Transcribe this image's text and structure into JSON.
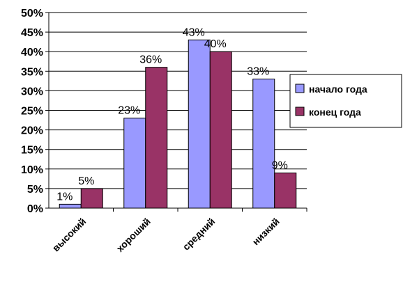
{
  "chart_data": {
    "type": "bar",
    "categories": [
      "высокий",
      "хороший",
      "средний",
      "низкий"
    ],
    "series": [
      {
        "name": "начало года",
        "values": [
          1,
          23,
          43,
          33
        ],
        "labels": [
          "1%",
          "23%",
          "43%",
          "33%"
        ],
        "color": "#9999FF"
      },
      {
        "name": "конец года",
        "values": [
          5,
          36,
          40,
          9
        ],
        "labels": [
          "5%",
          "36%",
          "40%",
          "9%"
        ],
        "color": "#993366"
      }
    ],
    "y_ticks": [
      "0%",
      "5%",
      "10%",
      "15%",
      "20%",
      "25%",
      "30%",
      "35%",
      "40%",
      "45%",
      "50%"
    ],
    "ylim": [
      0,
      50
    ],
    "grid": true,
    "legend_position": "right"
  }
}
